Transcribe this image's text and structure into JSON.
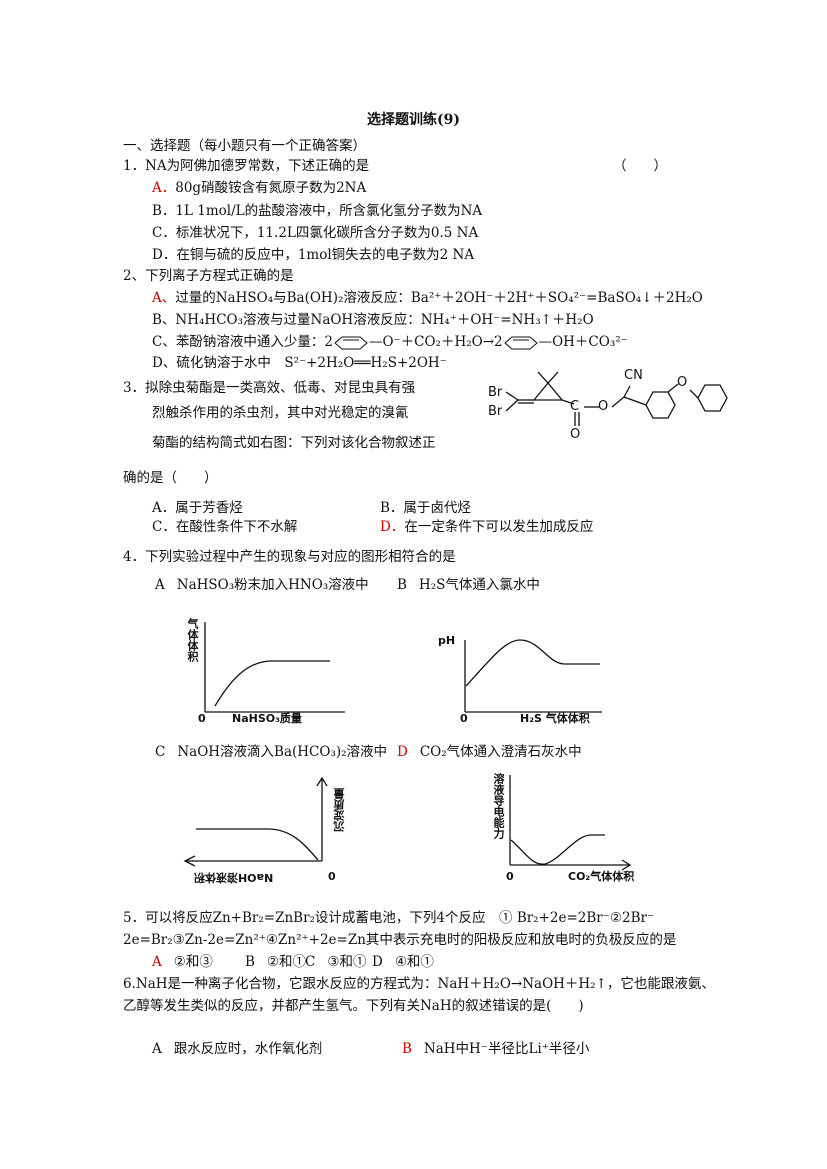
{
  "title": "选择题训练(9)",
  "section": "一、选择题（每小题只有一个正确答案）",
  "questions": [
    {
      "stem": "1．NA为阿佛加德罗常数，下述正确的是",
      "blank": "（　　）",
      "options": [
        {
          "label": "A．",
          "text": "80g硝酸铵含有氮原子数为2NA",
          "color": "#d40000"
        },
        {
          "label": "B．",
          "text": "1L 1mol/L的盐酸溶液中，所含氯化氢分子数为NA"
        },
        {
          "label": "C．",
          "text": "标准状况下，11.2L四氯化碳所含分子数为0.5 NA"
        },
        {
          "label": "D．",
          "text": "在铜与硫的反应中，1mol铜失去的电子数为2 NA"
        }
      ]
    },
    {
      "stem": "2、下列离子方程式正确的是",
      "options": [
        {
          "label": "A、",
          "text": "过量的NaHSO₄与Ba(OH)₂溶液反应：Ba²⁺＋2OH⁻＋2H⁺＋SO₄²⁻=BaSO₄↓＋2H₂O",
          "color": "#d40000"
        },
        {
          "label": "B、",
          "text": "NH₄HCO₃溶液与过量NaOH溶液反应：NH₄⁺＋OH⁻=NH₃↑＋H₂O"
        },
        {
          "label": "C、",
          "text": [
            "苯酚钠溶液中通入少量：2",
            "—O⁻＋CO₂＋H₂O→2",
            "—OH＋CO₃²⁻"
          ]
        },
        {
          "label": "D、",
          "text": "硫化钠溶于水中　S²⁻+2H₂O══H₂S+2OH⁻"
        }
      ]
    },
    {
      "stem": [
        "3．拟除虫菊酯是一类高效、低毒、对昆虫具有强",
        "烈触杀作用的杀虫剂，其中对光稳定的溴氰",
        "菊酯的结构简式如右图：下列对该化合物叙述正",
        "确的是（　　）"
      ],
      "structure": {
        "atoms": [
          "Br",
          "Br",
          "C",
          "O",
          "O",
          "CN",
          "O"
        ]
      },
      "options": [
        {
          "label": "A．",
          "text": "属于芳香烃"
        },
        {
          "label": "B．",
          "text": "属于卤代烃"
        },
        {
          "label": "C．",
          "text": "在酸性条件下不水解"
        },
        {
          "label": "D．",
          "text": "在一定条件下可以发生加成反应",
          "color": "#d40000"
        }
      ]
    },
    {
      "stem": "4．下列实验过程中产生的现象与对应的图形相符合的是",
      "options": [
        {
          "label": "A",
          "text": "NaHSO₃粉末加入HNO₃溶液中"
        },
        {
          "label": "B",
          "text": "H₂S气体通入氯水中"
        },
        {
          "label": "C",
          "text": "NaOH溶液滴入Ba(HCO₃)₂溶液中"
        },
        {
          "label": "D",
          "text": "CO₂气体通入澄清石灰水中",
          "color": "#d40000"
        }
      ],
      "graphs": [
        {
          "y_label": "气体体积",
          "x_label": "NaHSO₃质量",
          "origin": "0"
        },
        {
          "y_label": "pH",
          "x_label": "H₂S 气体体积",
          "origin": "0"
        },
        {
          "y_label": "沉淀质量",
          "x_label": "NaOH溶液体积",
          "origin": "0"
        },
        {
          "y_label": "溶液导电能力",
          "x_label": "CO₂气体体积",
          "origin": "0"
        }
      ]
    },
    {
      "stem": [
        "5．可以将反应Zn+Br₂=ZnBr₂设计成蓄电池，下列4个反应　① Br₂+2e=2Br⁻②2Br⁻",
        "2e=Br₂③Zn-2e=Zn²⁺④Zn²⁺+2e=Zn其中表示充电时的阳极反应和放电时的负极反应的是"
      ],
      "options": [
        {
          "label": "A",
          "text": "②和③",
          "color": "#d40000"
        },
        {
          "label": "B",
          "text": "②和①"
        },
        {
          "label": "C",
          "text": "③和①"
        },
        {
          "label": "D",
          "text": "④和①"
        }
      ]
    },
    {
      "stem": [
        "6.NaH是一种离子化合物，它跟水反应的方程式为：NaH＋H₂O→NaOH＋H₂↑，它也能跟液氨、",
        "乙醇等发生类似的反应，并都产生氢气。下列有关NaH的叙述错误的是(　　)"
      ],
      "options": [
        {
          "label": "A",
          "text": "跟水反应时，水作氧化剂"
        },
        {
          "label": "B",
          "text": "NaH中H⁻半径比Li⁺半径小",
          "color": "#d40000"
        }
      ]
    }
  ]
}
